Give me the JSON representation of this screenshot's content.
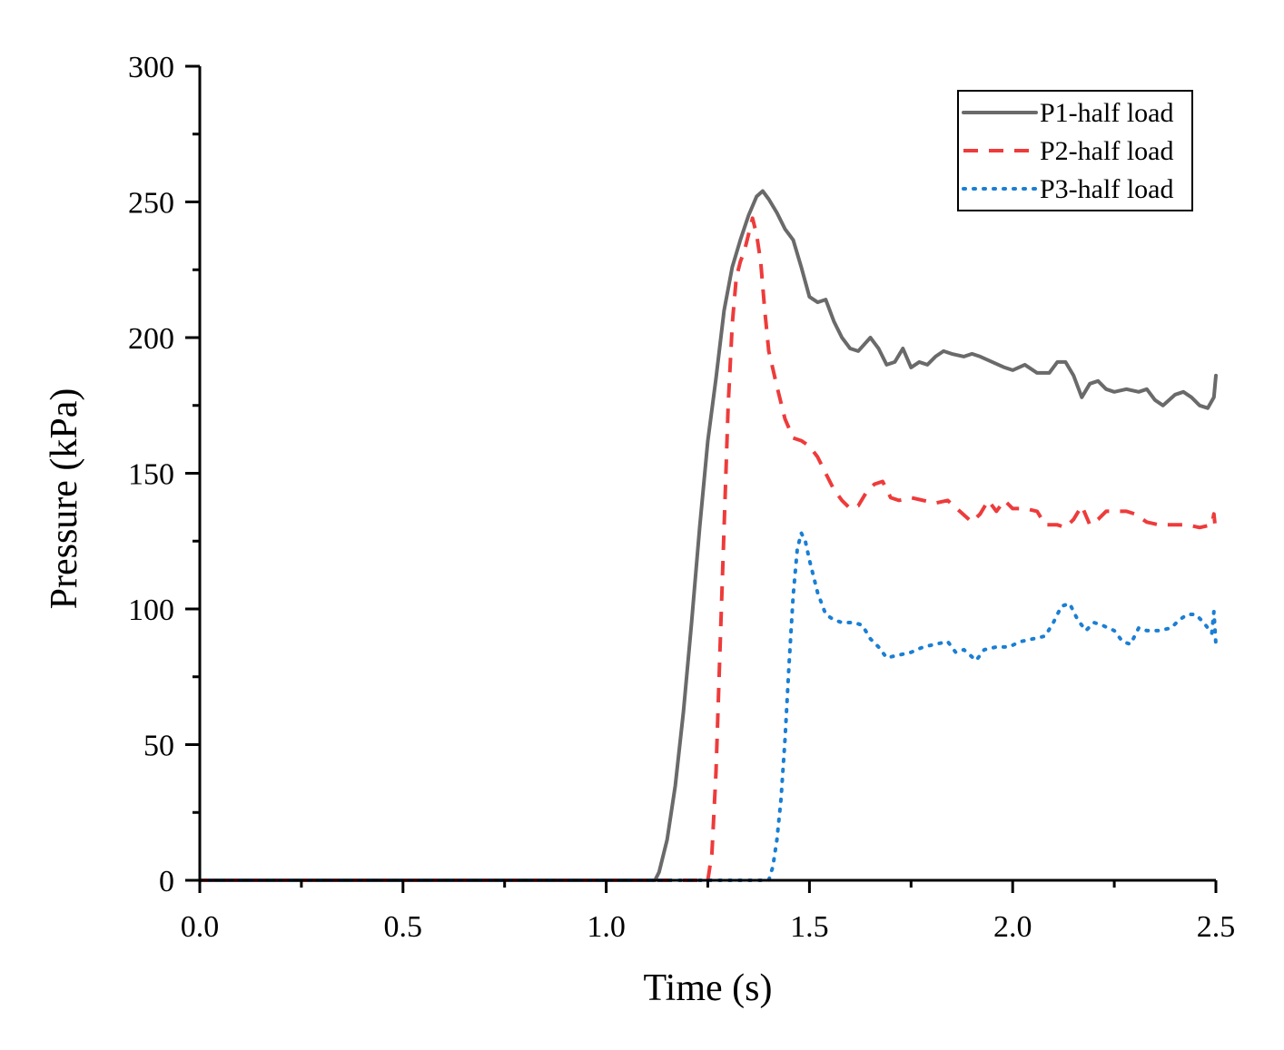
{
  "chart_data": {
    "type": "line",
    "title": "",
    "xlabel": "Time (s)",
    "ylabel": "Pressure (kPa)",
    "xlim": [
      0,
      2.5
    ],
    "ylim": [
      0,
      300
    ],
    "xticks": [
      0.0,
      0.5,
      1.0,
      1.5,
      2.0,
      2.5
    ],
    "xtick_labels": [
      "0.0",
      "0.5",
      "1.0",
      "1.5",
      "2.0",
      "2.5"
    ],
    "yticks": [
      0,
      50,
      100,
      150,
      200,
      250,
      300
    ],
    "ytick_labels": [
      "0",
      "50",
      "100",
      "150",
      "200",
      "250",
      "300"
    ],
    "grid": false,
    "legend_position": "top-right",
    "series": [
      {
        "name": "P1-half load",
        "color": "#6a6a6a",
        "style": "solid",
        "points": [
          [
            0.0,
            0
          ],
          [
            1.12,
            0
          ],
          [
            1.13,
            3
          ],
          [
            1.15,
            15
          ],
          [
            1.17,
            35
          ],
          [
            1.19,
            62
          ],
          [
            1.21,
            95
          ],
          [
            1.23,
            130
          ],
          [
            1.25,
            162
          ],
          [
            1.27,
            185
          ],
          [
            1.29,
            210
          ],
          [
            1.31,
            226
          ],
          [
            1.33,
            236
          ],
          [
            1.35,
            245
          ],
          [
            1.37,
            252
          ],
          [
            1.385,
            254
          ],
          [
            1.4,
            251
          ],
          [
            1.42,
            246
          ],
          [
            1.44,
            240
          ],
          [
            1.46,
            236
          ],
          [
            1.48,
            226
          ],
          [
            1.5,
            215
          ],
          [
            1.52,
            213
          ],
          [
            1.54,
            214
          ],
          [
            1.56,
            206
          ],
          [
            1.58,
            200
          ],
          [
            1.6,
            196
          ],
          [
            1.62,
            195
          ],
          [
            1.65,
            200
          ],
          [
            1.67,
            196
          ],
          [
            1.69,
            190
          ],
          [
            1.71,
            191
          ],
          [
            1.73,
            196
          ],
          [
            1.75,
            189
          ],
          [
            1.77,
            191
          ],
          [
            1.79,
            190
          ],
          [
            1.81,
            193
          ],
          [
            1.83,
            195
          ],
          [
            1.85,
            194
          ],
          [
            1.88,
            193
          ],
          [
            1.9,
            194
          ],
          [
            1.92,
            193
          ],
          [
            1.95,
            191
          ],
          [
            1.98,
            189
          ],
          [
            2.0,
            188
          ],
          [
            2.03,
            190
          ],
          [
            2.06,
            187
          ],
          [
            2.09,
            187
          ],
          [
            2.11,
            191
          ],
          [
            2.13,
            191
          ],
          [
            2.15,
            186
          ],
          [
            2.17,
            178
          ],
          [
            2.19,
            183
          ],
          [
            2.21,
            184
          ],
          [
            2.23,
            181
          ],
          [
            2.25,
            180
          ],
          [
            2.28,
            181
          ],
          [
            2.31,
            180
          ],
          [
            2.33,
            181
          ],
          [
            2.35,
            177
          ],
          [
            2.37,
            175
          ],
          [
            2.4,
            179
          ],
          [
            2.42,
            180
          ],
          [
            2.44,
            178
          ],
          [
            2.46,
            175
          ],
          [
            2.48,
            174
          ],
          [
            2.495,
            178
          ],
          [
            2.5,
            186
          ]
        ]
      },
      {
        "name": "P2-half load",
        "color": "#ee3b3b",
        "style": "dashed",
        "points": [
          [
            0.0,
            0
          ],
          [
            1.25,
            0
          ],
          [
            1.26,
            10
          ],
          [
            1.27,
            40
          ],
          [
            1.28,
            85
          ],
          [
            1.29,
            130
          ],
          [
            1.3,
            175
          ],
          [
            1.31,
            205
          ],
          [
            1.32,
            222
          ],
          [
            1.33,
            228
          ],
          [
            1.34,
            232
          ],
          [
            1.35,
            238
          ],
          [
            1.36,
            244
          ],
          [
            1.37,
            238
          ],
          [
            1.38,
            228
          ],
          [
            1.39,
            210
          ],
          [
            1.4,
            195
          ],
          [
            1.42,
            182
          ],
          [
            1.44,
            170
          ],
          [
            1.46,
            163
          ],
          [
            1.48,
            162
          ],
          [
            1.5,
            160
          ],
          [
            1.52,
            156
          ],
          [
            1.54,
            150
          ],
          [
            1.56,
            144
          ],
          [
            1.58,
            140
          ],
          [
            1.6,
            137
          ],
          [
            1.62,
            138
          ],
          [
            1.64,
            143
          ],
          [
            1.66,
            146
          ],
          [
            1.68,
            147
          ],
          [
            1.7,
            141
          ],
          [
            1.72,
            140
          ],
          [
            1.75,
            141
          ],
          [
            1.78,
            140
          ],
          [
            1.81,
            139
          ],
          [
            1.84,
            140
          ],
          [
            1.87,
            136
          ],
          [
            1.9,
            132
          ],
          [
            1.92,
            135
          ],
          [
            1.94,
            140
          ],
          [
            1.96,
            136
          ],
          [
            1.98,
            140
          ],
          [
            2.0,
            137
          ],
          [
            2.03,
            137
          ],
          [
            2.06,
            136
          ],
          [
            2.08,
            131
          ],
          [
            2.11,
            131
          ],
          [
            2.13,
            130
          ],
          [
            2.15,
            133
          ],
          [
            2.17,
            138
          ],
          [
            2.19,
            131
          ],
          [
            2.21,
            133
          ],
          [
            2.23,
            136
          ],
          [
            2.25,
            136
          ],
          [
            2.28,
            136
          ],
          [
            2.3,
            135
          ],
          [
            2.33,
            132
          ],
          [
            2.36,
            131
          ],
          [
            2.4,
            131
          ],
          [
            2.43,
            131
          ],
          [
            2.46,
            130
          ],
          [
            2.49,
            131
          ],
          [
            2.495,
            135
          ],
          [
            2.5,
            128
          ]
        ]
      },
      {
        "name": "P3-half load",
        "color": "#1a7fd4",
        "style": "dotted",
        "points": [
          [
            0.0,
            0
          ],
          [
            1.4,
            0
          ],
          [
            1.41,
            5
          ],
          [
            1.42,
            15
          ],
          [
            1.43,
            30
          ],
          [
            1.44,
            52
          ],
          [
            1.45,
            80
          ],
          [
            1.46,
            105
          ],
          [
            1.47,
            122
          ],
          [
            1.48,
            128
          ],
          [
            1.49,
            125
          ],
          [
            1.5,
            118
          ],
          [
            1.52,
            106
          ],
          [
            1.54,
            98
          ],
          [
            1.56,
            96
          ],
          [
            1.58,
            95
          ],
          [
            1.61,
            95
          ],
          [
            1.63,
            94
          ],
          [
            1.65,
            89
          ],
          [
            1.67,
            86
          ],
          [
            1.69,
            82
          ],
          [
            1.72,
            83
          ],
          [
            1.75,
            84
          ],
          [
            1.78,
            86
          ],
          [
            1.81,
            87
          ],
          [
            1.84,
            88
          ],
          [
            1.86,
            84
          ],
          [
            1.88,
            85
          ],
          [
            1.91,
            81
          ],
          [
            1.93,
            85
          ],
          [
            1.96,
            86
          ],
          [
            1.99,
            86
          ],
          [
            2.02,
            88
          ],
          [
            2.05,
            89
          ],
          [
            2.08,
            90
          ],
          [
            2.1,
            95
          ],
          [
            2.12,
            101
          ],
          [
            2.14,
            102
          ],
          [
            2.16,
            96
          ],
          [
            2.18,
            92
          ],
          [
            2.2,
            95
          ],
          [
            2.22,
            94
          ],
          [
            2.25,
            92
          ],
          [
            2.27,
            88
          ],
          [
            2.29,
            87
          ],
          [
            2.31,
            93
          ],
          [
            2.33,
            92
          ],
          [
            2.36,
            92
          ],
          [
            2.39,
            93
          ],
          [
            2.41,
            96
          ],
          [
            2.43,
            98
          ],
          [
            2.45,
            98
          ],
          [
            2.47,
            95
          ],
          [
            2.49,
            91
          ],
          [
            2.495,
            99
          ],
          [
            2.5,
            87
          ]
        ]
      }
    ]
  }
}
